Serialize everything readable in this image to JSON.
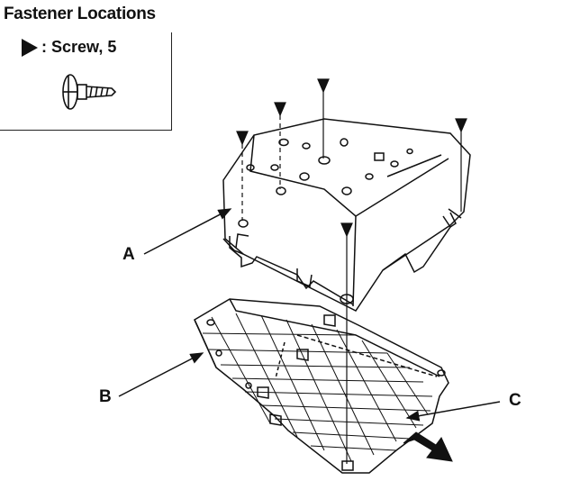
{
  "header": {
    "title": "Fastener Locations"
  },
  "legend": {
    "screw_label": ": Screw, 5"
  },
  "callouts": {
    "a": "A",
    "b": "B",
    "c": "C"
  }
}
